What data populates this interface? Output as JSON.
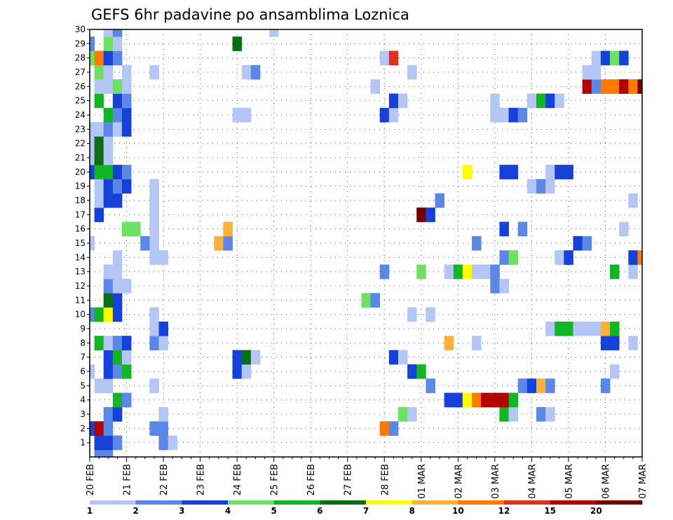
{
  "chart_data": {
    "type": "heatmap",
    "title": "GEFS 6hr padavine po ansamblima Loznica",
    "x_tick_labels": [
      "20 FEB",
      "21 FEB",
      "22 FEB",
      "23 FEB",
      "24 FEB",
      "25 FEB",
      "26 FEB",
      "27 FEB",
      "28 FEB",
      "01 MAR",
      "02 MAR",
      "03 MAR",
      "04 MAR",
      "05 MAR",
      "06 MAR",
      "07 MAR"
    ],
    "y_tick_labels": [
      "1",
      "2",
      "3",
      "4",
      "5",
      "6",
      "7",
      "8",
      "9",
      "10",
      "11",
      "12",
      "13",
      "14",
      "15",
      "16",
      "17",
      "18",
      "19",
      "20",
      "21",
      "22",
      "23",
      "24",
      "25",
      "26",
      "27",
      "28",
      "29",
      "30"
    ],
    "xlim": [
      0,
      60
    ],
    "ylim": [
      0,
      30
    ],
    "steps_per_day": 4,
    "legend": {
      "placement": "bottom",
      "labels": [
        "1",
        "2",
        "3",
        "4",
        "5",
        "6",
        "7",
        "8",
        "10",
        "12",
        "15",
        "20"
      ],
      "colors": [
        "#b3c6f5",
        "#5b87e6",
        "#1541d8",
        "#6ee063",
        "#12b624",
        "#0a6e14",
        "#ffff00",
        "#ffb03a",
        "#ff7a00",
        "#e0301a",
        "#b30000",
        "#6e0000"
      ]
    },
    "cells": [
      [
        1,
        0,
        2
      ],
      [
        2,
        0,
        2
      ],
      [
        1,
        1,
        3
      ],
      [
        2,
        1,
        3
      ],
      [
        3,
        1,
        2
      ],
      [
        8,
        1,
        2
      ],
      [
        9,
        1,
        1
      ],
      [
        0,
        2,
        3
      ],
      [
        1,
        2,
        11
      ],
      [
        2,
        2,
        2
      ],
      [
        7,
        2,
        2
      ],
      [
        8,
        2,
        2
      ],
      [
        32,
        2,
        9
      ],
      [
        33,
        2,
        2
      ],
      [
        2,
        3,
        2
      ],
      [
        3,
        3,
        3
      ],
      [
        8,
        3,
        1
      ],
      [
        34,
        3,
        4
      ],
      [
        35,
        3,
        1
      ],
      [
        45,
        3,
        5
      ],
      [
        46,
        3,
        1
      ],
      [
        49,
        3,
        2
      ],
      [
        50,
        3,
        1
      ],
      [
        3,
        4,
        5
      ],
      [
        4,
        4,
        2
      ],
      [
        39,
        4,
        3
      ],
      [
        40,
        4,
        3
      ],
      [
        41,
        4,
        7
      ],
      [
        42,
        4,
        9
      ],
      [
        43,
        4,
        11
      ],
      [
        44,
        4,
        11
      ],
      [
        45,
        4,
        11
      ],
      [
        46,
        4,
        5
      ],
      [
        1,
        5,
        1
      ],
      [
        2,
        5,
        1
      ],
      [
        7,
        5,
        1
      ],
      [
        37,
        5,
        2
      ],
      [
        47,
        5,
        2
      ],
      [
        48,
        5,
        3
      ],
      [
        49,
        5,
        8
      ],
      [
        50,
        5,
        2
      ],
      [
        56,
        5,
        2
      ],
      [
        0,
        6,
        1
      ],
      [
        2,
        6,
        3
      ],
      [
        3,
        6,
        2
      ],
      [
        4,
        6,
        5
      ],
      [
        16,
        6,
        3
      ],
      [
        17,
        6,
        1
      ],
      [
        35,
        6,
        3
      ],
      [
        36,
        6,
        5
      ],
      [
        57,
        6,
        1
      ],
      [
        2,
        7,
        3
      ],
      [
        3,
        7,
        5
      ],
      [
        4,
        7,
        1
      ],
      [
        16,
        7,
        3
      ],
      [
        17,
        7,
        6
      ],
      [
        18,
        7,
        1
      ],
      [
        33,
        7,
        3
      ],
      [
        34,
        7,
        1
      ],
      [
        1,
        8,
        5
      ],
      [
        2,
        8,
        1
      ],
      [
        3,
        8,
        2
      ],
      [
        4,
        8,
        3
      ],
      [
        7,
        8,
        2
      ],
      [
        8,
        8,
        1
      ],
      [
        39,
        8,
        8
      ],
      [
        42,
        8,
        1
      ],
      [
        56,
        8,
        3
      ],
      [
        57,
        8,
        3
      ],
      [
        59,
        8,
        1
      ],
      [
        7,
        9,
        1
      ],
      [
        8,
        9,
        3
      ],
      [
        50,
        9,
        1
      ],
      [
        51,
        9,
        5
      ],
      [
        52,
        9,
        5
      ],
      [
        53,
        9,
        1
      ],
      [
        54,
        9,
        1
      ],
      [
        55,
        9,
        1
      ],
      [
        56,
        9,
        8
      ],
      [
        57,
        9,
        5
      ],
      [
        0,
        10,
        2
      ],
      [
        1,
        10,
        5
      ],
      [
        2,
        10,
        7
      ],
      [
        3,
        10,
        3
      ],
      [
        7,
        10,
        1
      ],
      [
        35,
        10,
        1
      ],
      [
        37,
        10,
        1
      ],
      [
        2,
        11,
        6
      ],
      [
        3,
        11,
        3
      ],
      [
        30,
        11,
        4
      ],
      [
        31,
        11,
        2
      ],
      [
        2,
        12,
        2
      ],
      [
        3,
        12,
        1
      ],
      [
        4,
        12,
        1
      ],
      [
        44,
        12,
        2
      ],
      [
        45,
        12,
        1
      ],
      [
        2,
        13,
        1
      ],
      [
        3,
        13,
        1
      ],
      [
        32,
        13,
        2
      ],
      [
        36,
        13,
        4
      ],
      [
        39,
        13,
        1
      ],
      [
        40,
        13,
        5
      ],
      [
        41,
        13,
        7
      ],
      [
        42,
        13,
        1
      ],
      [
        43,
        13,
        1
      ],
      [
        44,
        13,
        2
      ],
      [
        57,
        13,
        5
      ],
      [
        59,
        13,
        1
      ],
      [
        3,
        14,
        1
      ],
      [
        7,
        14,
        1
      ],
      [
        8,
        14,
        1
      ],
      [
        45,
        14,
        2
      ],
      [
        46,
        14,
        4
      ],
      [
        51,
        14,
        1
      ],
      [
        52,
        14,
        3
      ],
      [
        59,
        14,
        3
      ],
      [
        60,
        14,
        9
      ],
      [
        0,
        15,
        1
      ],
      [
        6,
        15,
        2
      ],
      [
        7,
        15,
        1
      ],
      [
        14,
        15,
        8
      ],
      [
        15,
        15,
        2
      ],
      [
        42,
        15,
        2
      ],
      [
        53,
        15,
        3
      ],
      [
        54,
        15,
        2
      ],
      [
        4,
        16,
        4
      ],
      [
        5,
        16,
        4
      ],
      [
        7,
        16,
        1
      ],
      [
        15,
        16,
        8
      ],
      [
        45,
        16,
        3
      ],
      [
        47,
        16,
        2
      ],
      [
        58,
        16,
        1
      ],
      [
        1,
        17,
        3
      ],
      [
        7,
        17,
        1
      ],
      [
        36,
        17,
        12
      ],
      [
        37,
        17,
        3
      ],
      [
        1,
        18,
        1
      ],
      [
        2,
        18,
        3
      ],
      [
        3,
        18,
        3
      ],
      [
        7,
        18,
        1
      ],
      [
        38,
        18,
        2
      ],
      [
        59,
        18,
        1
      ],
      [
        1,
        19,
        1
      ],
      [
        2,
        19,
        3
      ],
      [
        3,
        19,
        2
      ],
      [
        4,
        19,
        3
      ],
      [
        7,
        19,
        1
      ],
      [
        48,
        19,
        1
      ],
      [
        49,
        19,
        2
      ],
      [
        50,
        19,
        1
      ],
      [
        0,
        20,
        3
      ],
      [
        1,
        20,
        5
      ],
      [
        2,
        20,
        5
      ],
      [
        3,
        20,
        3
      ],
      [
        4,
        20,
        2
      ],
      [
        41,
        20,
        7
      ],
      [
        45,
        20,
        3
      ],
      [
        46,
        20,
        3
      ],
      [
        50,
        20,
        1
      ],
      [
        51,
        20,
        3
      ],
      [
        52,
        20,
        3
      ],
      [
        0,
        21,
        1
      ],
      [
        1,
        21,
        6
      ],
      [
        2,
        21,
        1
      ],
      [
        0,
        22,
        1
      ],
      [
        1,
        22,
        6
      ],
      [
        2,
        22,
        1
      ],
      [
        0,
        23,
        1
      ],
      [
        1,
        23,
        1
      ],
      [
        2,
        23,
        2
      ],
      [
        3,
        23,
        1
      ],
      [
        4,
        23,
        3
      ],
      [
        2,
        24,
        5
      ],
      [
        3,
        24,
        2
      ],
      [
        4,
        24,
        3
      ],
      [
        16,
        24,
        1
      ],
      [
        17,
        24,
        1
      ],
      [
        32,
        24,
        3
      ],
      [
        33,
        24,
        1
      ],
      [
        44,
        24,
        1
      ],
      [
        45,
        24,
        1
      ],
      [
        46,
        24,
        3
      ],
      [
        47,
        24,
        2
      ],
      [
        1,
        25,
        5
      ],
      [
        3,
        25,
        3
      ],
      [
        4,
        25,
        2
      ],
      [
        33,
        25,
        3
      ],
      [
        34,
        25,
        1
      ],
      [
        44,
        25,
        1
      ],
      [
        48,
        25,
        1
      ],
      [
        49,
        25,
        5
      ],
      [
        50,
        25,
        3
      ],
      [
        51,
        25,
        1
      ],
      [
        1,
        26,
        1
      ],
      [
        2,
        26,
        1
      ],
      [
        3,
        26,
        4
      ],
      [
        4,
        26,
        1
      ],
      [
        31,
        26,
        1
      ],
      [
        54,
        26,
        11
      ],
      [
        55,
        26,
        2
      ],
      [
        56,
        26,
        9
      ],
      [
        57,
        26,
        9
      ],
      [
        58,
        26,
        11
      ],
      [
        59,
        26,
        9
      ],
      [
        60,
        26,
        12
      ],
      [
        1,
        27,
        4
      ],
      [
        2,
        27,
        1
      ],
      [
        4,
        27,
        1
      ],
      [
        7,
        27,
        1
      ],
      [
        17,
        27,
        1
      ],
      [
        18,
        27,
        2
      ],
      [
        35,
        27,
        1
      ],
      [
        54,
        27,
        1
      ],
      [
        55,
        27,
        1
      ],
      [
        0,
        28,
        4
      ],
      [
        1,
        28,
        9
      ],
      [
        2,
        28,
        3
      ],
      [
        3,
        28,
        2
      ],
      [
        32,
        28,
        1
      ],
      [
        33,
        28,
        10
      ],
      [
        55,
        28,
        1
      ],
      [
        56,
        28,
        3
      ],
      [
        57,
        28,
        4
      ],
      [
        58,
        28,
        3
      ],
      [
        0,
        29,
        2
      ],
      [
        2,
        29,
        4
      ],
      [
        3,
        29,
        1
      ],
      [
        16,
        29,
        6
      ],
      [
        2,
        30,
        1
      ],
      [
        3,
        30,
        2
      ],
      [
        20,
        30,
        1
      ]
    ]
  }
}
